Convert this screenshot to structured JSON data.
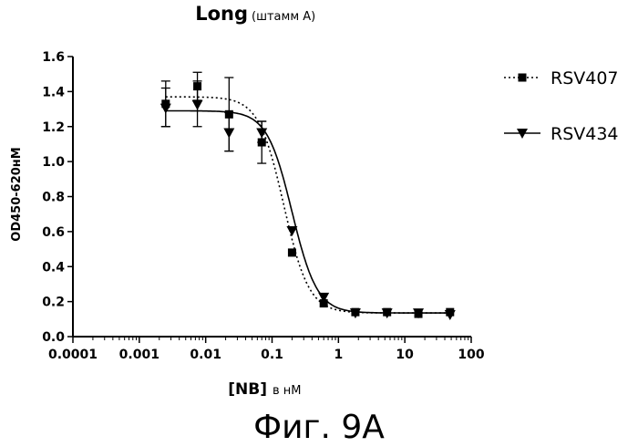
{
  "chart_data": {
    "type": "scatter",
    "title": "Long",
    "title_suffix": "(штамм А)",
    "xlabel": "[NB]",
    "xlabel_unit": "в нМ",
    "ylabel": "OD450-620нМ",
    "xscale": "log",
    "xlim": [
      0.0001,
      100
    ],
    "ylim": [
      0.0,
      1.6
    ],
    "x_ticks": [
      0.0001,
      0.001,
      0.01,
      0.1,
      1,
      10,
      100
    ],
    "x_tick_labels": [
      "0.0001",
      "0.001",
      "0.01",
      "0.1",
      "1",
      "10",
      "100"
    ],
    "y_ticks": [
      0.0,
      0.2,
      0.4,
      0.6,
      0.8,
      1.0,
      1.2,
      1.4,
      1.6
    ],
    "y_tick_labels": [
      "0.0",
      "0.2",
      "0.4",
      "0.6",
      "0.8",
      "1.0",
      "1.2",
      "1.4",
      "1.6"
    ],
    "legend_position": "top-right",
    "series": [
      {
        "name": "RSV407",
        "marker": "square",
        "line": "dotted",
        "x": [
          0.0025,
          0.0075,
          0.0225,
          0.07,
          0.2,
          0.6,
          1.8,
          5.4,
          16,
          48
        ],
        "y": [
          1.33,
          1.43,
          1.27,
          1.11,
          0.48,
          0.19,
          0.14,
          0.14,
          0.13,
          0.14
        ],
        "err": [
          0.13,
          0.08,
          0.21,
          0.12,
          0,
          0,
          0,
          0,
          0,
          0
        ],
        "fit": {
          "top": 1.37,
          "bottom": 0.135,
          "ec50": 0.15,
          "hill": 2.3
        }
      },
      {
        "name": "RSV434",
        "marker": "triangle-down",
        "line": "solid",
        "x": [
          0.0025,
          0.0075,
          0.0225,
          0.07,
          0.2,
          0.6,
          1.8,
          5.4,
          16,
          48
        ],
        "y": [
          1.31,
          1.33,
          1.17,
          1.17,
          0.61,
          0.23,
          0.14,
          0.14,
          0.14,
          0.13
        ],
        "err": [
          0.11,
          0.13,
          0.11,
          0.06,
          0,
          0,
          0,
          0,
          0,
          0
        ],
        "fit": {
          "top": 1.29,
          "bottom": 0.135,
          "ec50": 0.2,
          "hill": 2.3
        }
      }
    ]
  },
  "caption": "Фиг. 9А",
  "colors": {
    "ink": "#000000",
    "background": "#ffffff"
  }
}
